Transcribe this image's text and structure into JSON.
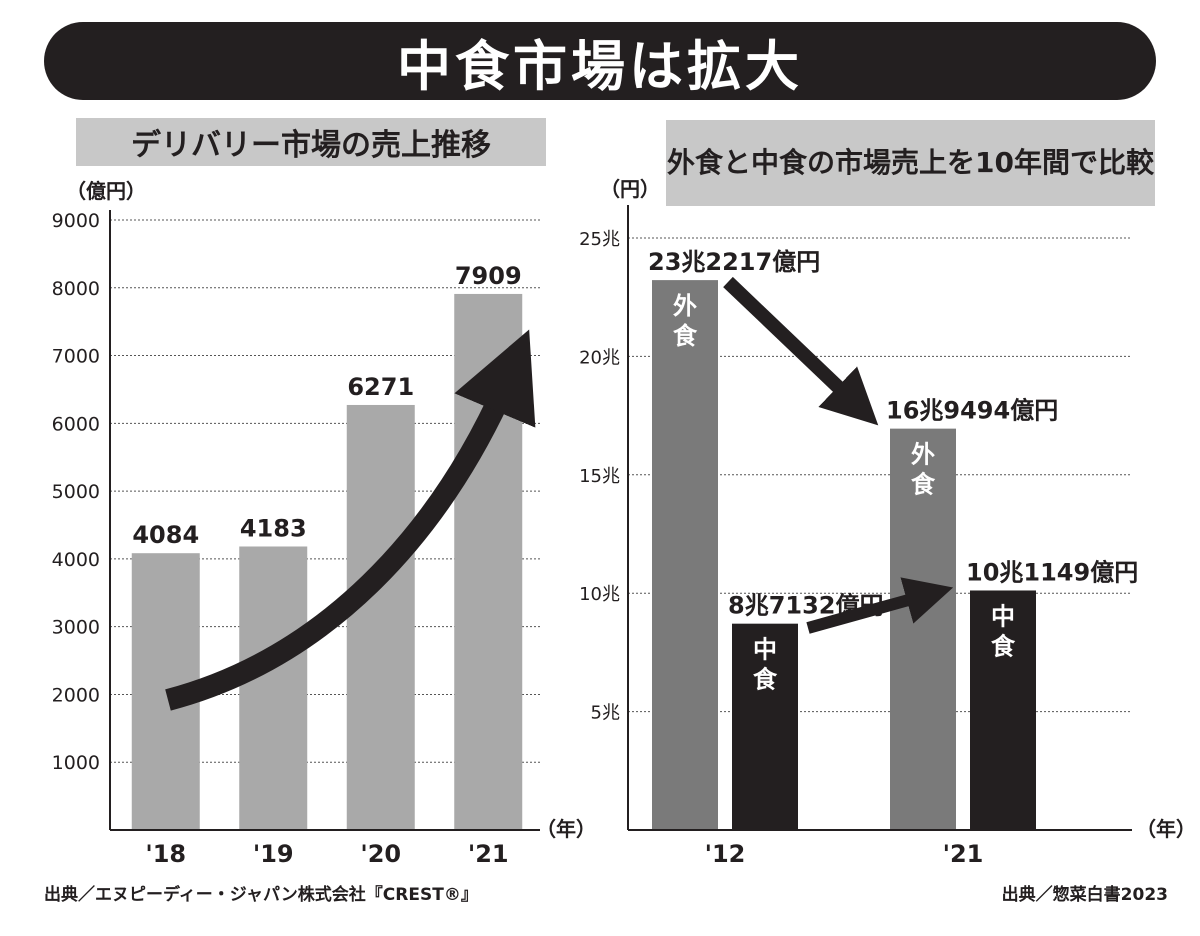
{
  "title": "中食市場は拡大",
  "colors": {
    "dark": "#231f20",
    "gray": "#7a7a7a",
    "lightgray": "#a9a9a9",
    "panel": "#c8c8c8"
  },
  "chart_data": [
    {
      "type": "bar",
      "title": "デリバリー市場の売上推移",
      "y_unit": "（億円）",
      "x_unit": "（年）",
      "categories": [
        "'18",
        "'19",
        "'20",
        "'21"
      ],
      "values": [
        4084,
        4183,
        6271,
        7909
      ],
      "data_labels": [
        "4084",
        "4183",
        "6271",
        "7909"
      ],
      "ylim": [
        0,
        9000
      ],
      "yticks": [
        "1000",
        "2000",
        "3000",
        "4000",
        "5000",
        "6000",
        "7000",
        "8000",
        "9000"
      ],
      "ytick_values": [
        1000,
        2000,
        3000,
        4000,
        5000,
        6000,
        7000,
        8000,
        9000
      ],
      "grid": true,
      "source": "出典／エヌピーディー・ジャパン株式会社『CREST®』"
    },
    {
      "type": "bar",
      "title_lines": [
        "外食と中食の市場売上を",
        "10年間で比較"
      ],
      "y_unit": "（円）",
      "x_unit": "（年）",
      "categories": [
        "'12",
        "'21"
      ],
      "series": [
        {
          "name": "外食",
          "values": [
            23.2217,
            16.9494
          ],
          "data_labels": [
            "23兆2217億円",
            "16兆9494億円"
          ]
        },
        {
          "name": "中食",
          "values": [
            8.7132,
            10.1149
          ],
          "data_labels": [
            "8兆7132億円",
            "10兆1149億円"
          ]
        }
      ],
      "ylim": [
        0,
        25
      ],
      "yticks": [
        "5兆",
        "10兆",
        "15兆",
        "20兆",
        "25兆"
      ],
      "ytick_values": [
        5,
        10,
        15,
        20,
        25
      ],
      "grid": true,
      "source": "出典／惣菜白書2023"
    }
  ]
}
